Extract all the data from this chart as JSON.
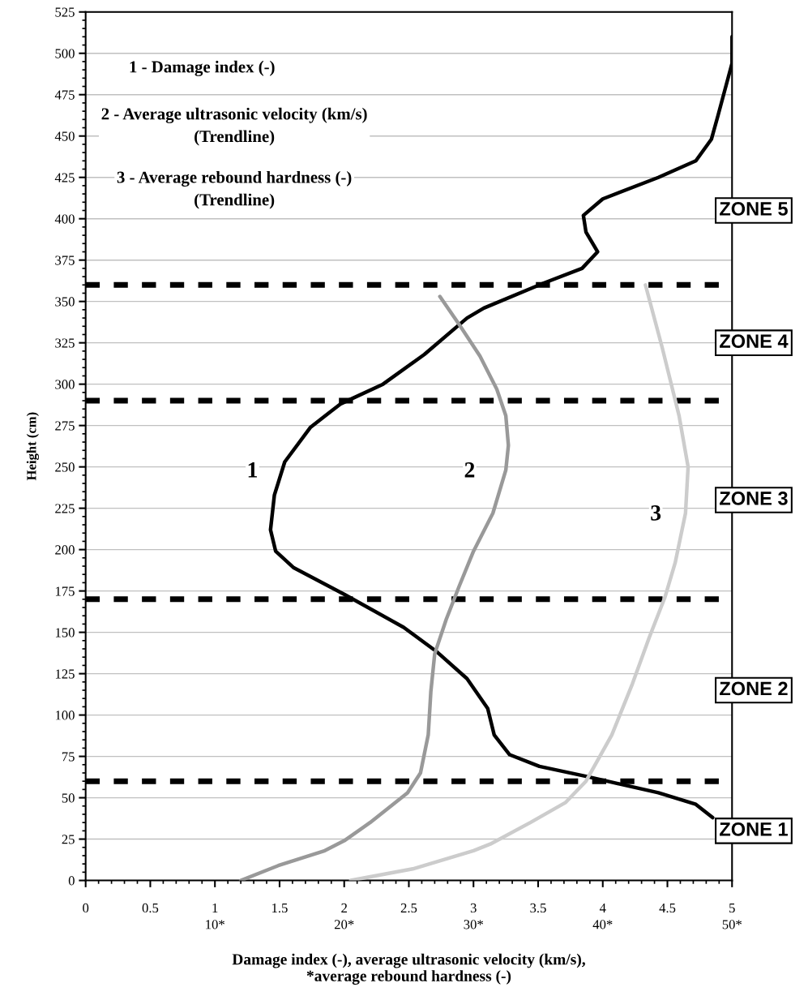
{
  "chart_data": {
    "type": "line",
    "xlabel": "Damage index (-), average ultrasonic velocity (km/s),\n*average rebound hardness (-)",
    "ylabel": "Height (cm)",
    "xlim": [
      0,
      5
    ],
    "xticks": [
      0,
      0.5,
      1,
      1.5,
      2,
      2.5,
      3,
      3.5,
      4,
      4.5,
      5
    ],
    "x2lim": [
      0,
      50
    ],
    "x2ticks": [
      {
        "value": 10,
        "label": "10*"
      },
      {
        "value": 20,
        "label": "20*"
      },
      {
        "value": 30,
        "label": "30*"
      },
      {
        "value": 40,
        "label": "40*"
      },
      {
        "value": 50,
        "label": "50*"
      }
    ],
    "ylim": [
      0,
      525
    ],
    "yticks": [
      0,
      25,
      50,
      75,
      100,
      125,
      150,
      175,
      200,
      225,
      250,
      275,
      300,
      325,
      350,
      375,
      400,
      425,
      450,
      475,
      500,
      525
    ],
    "grid": "y",
    "line_style": "solid",
    "series": [
      {
        "color": "#000000",
        "x": [
          5.0,
          5.0,
          4.89,
          4.84,
          4.72,
          4.43,
          4.0,
          3.85,
          3.87,
          3.96,
          3.84,
          3.54,
          3.08,
          2.95,
          2.62,
          2.3,
          1.97,
          1.74,
          1.54,
          1.46,
          1.43,
          1.47,
          1.61,
          2.0,
          2.46,
          2.72,
          2.95,
          3.11,
          3.16,
          3.28,
          3.51,
          3.87,
          4.43,
          4.72,
          4.85
        ],
        "values": [
          510,
          494,
          462,
          448,
          435,
          425,
          412,
          402,
          392,
          380,
          370,
          361,
          346,
          340,
          318,
          300,
          288,
          274,
          253,
          233,
          212,
          199,
          189,
          173,
          153,
          138,
          122,
          104,
          88,
          76,
          69,
          63,
          53,
          46,
          38
        ]
      },
      {
        "color": "#999999",
        "x": [
          2.74,
          2.89,
          3.05,
          3.18,
          3.25,
          3.27,
          3.25,
          3.15,
          3.0,
          2.89,
          2.79,
          2.7,
          2.67,
          2.65,
          2.59,
          2.49,
          2.2,
          2.0,
          1.85,
          1.49,
          1.2
        ],
        "values": [
          353,
          336,
          317,
          297,
          281,
          263,
          248,
          222,
          199,
          178,
          158,
          137,
          114,
          88,
          65,
          53,
          35,
          24,
          18,
          9,
          0
        ]
      },
      {
        "color": "#cccccc",
        "x": [
          4.33,
          4.46,
          4.59,
          4.66,
          4.64,
          4.56,
          4.48,
          4.36,
          4.23,
          4.07,
          3.87,
          3.71,
          3.44,
          3.13,
          3.0,
          2.53,
          2.05
        ],
        "values": [
          360,
          322,
          281,
          250,
          222,
          192,
          171,
          147,
          119,
          88,
          60,
          47,
          35,
          22,
          18,
          7,
          0
        ]
      }
    ],
    "ref_lines": [
      {
        "axis": "y",
        "value": 60,
        "color": "#000000",
        "line_style": "dashed"
      },
      {
        "axis": "y",
        "value": 170,
        "color": "#000000",
        "line_style": "dashed"
      },
      {
        "axis": "y",
        "value": 290,
        "color": "#000000",
        "line_style": "dashed"
      },
      {
        "axis": "y",
        "value": 360,
        "color": "#000000",
        "line_style": "dashed"
      }
    ],
    "annotations": [
      "1 - Damage index (-)",
      "2 - Average ultrasonic velocity (km/s)\n(Trendline)",
      "3 - Average rebound hardness (-)\n(Trendline)",
      {
        "text": "1",
        "x": 1.29,
        "y": 247
      },
      {
        "text": "2",
        "x": 2.97,
        "y": 247
      },
      {
        "text": "3",
        "x": 4.41,
        "y": 221
      },
      "ZONE 5",
      "ZONE 4",
      "ZONE 3",
      "ZONE 2",
      "ZONE 1"
    ]
  }
}
